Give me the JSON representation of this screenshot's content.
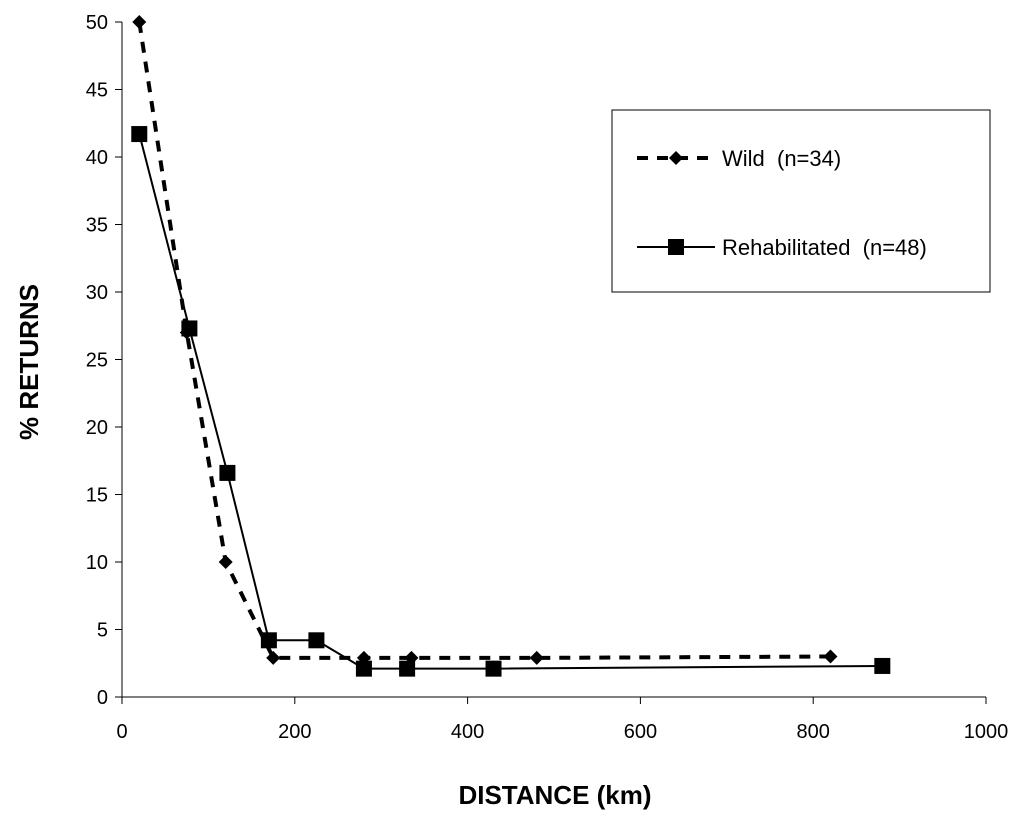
{
  "chart_data": {
    "type": "line",
    "title": "",
    "xlabel": "DISTANCE (km)",
    "ylabel": "% RETURNS",
    "xlim": [
      0,
      1000
    ],
    "ylim": [
      0,
      50
    ],
    "xticks": [
      0,
      200,
      400,
      600,
      800,
      1000
    ],
    "yticks": [
      0,
      5,
      10,
      15,
      20,
      25,
      30,
      35,
      40,
      45,
      50
    ],
    "grid": false,
    "legend_position": "top-right",
    "series": [
      {
        "name": "Wild  (n=34)",
        "line_style": "dashed",
        "marker": "diamond",
        "color": "#000000",
        "x": [
          20,
          75,
          120,
          175,
          280,
          335,
          480,
          820
        ],
        "y": [
          50,
          27,
          10,
          2.9,
          2.9,
          2.9,
          2.9,
          3.0
        ]
      },
      {
        "name": "Rehabilitated  (n=48)",
        "line_style": "solid",
        "marker": "square",
        "color": "#000000",
        "x": [
          20,
          78,
          122,
          170,
          225,
          280,
          330,
          430,
          880
        ],
        "y": [
          41.7,
          27.3,
          16.6,
          4.2,
          4.2,
          2.1,
          2.1,
          2.1,
          2.3
        ]
      }
    ]
  }
}
